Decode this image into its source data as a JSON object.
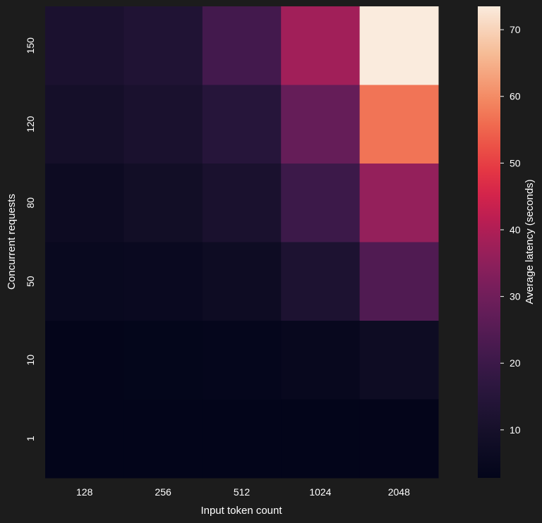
{
  "chart_data": {
    "type": "heatmap",
    "title": "",
    "xlabel": "Input token count",
    "ylabel": "Concurrent requests",
    "x_categories": [
      "128",
      "256",
      "512",
      "1024",
      "2048"
    ],
    "y_categories": [
      "150",
      "120",
      "80",
      "50",
      "10",
      "1"
    ],
    "values": [
      [
        11.5,
        13.0,
        21.5,
        38.0,
        73.5
      ],
      [
        9.5,
        11.0,
        15.0,
        28.0,
        57.0
      ],
      [
        6.5,
        8.5,
        11.0,
        20.0,
        36.0
      ],
      [
        5.0,
        5.5,
        7.0,
        12.0,
        24.0
      ],
      [
        3.0,
        3.2,
        3.6,
        4.6,
        7.0
      ],
      [
        2.8,
        2.8,
        2.8,
        2.9,
        3.0
      ]
    ],
    "colorbar": {
      "label": "Average latency (seconds)",
      "min": 2.8,
      "max": 73.5,
      "ticks": [
        10,
        20,
        30,
        40,
        50,
        60,
        70
      ],
      "colormap": "rocket"
    },
    "grid": false,
    "legend": "none"
  }
}
